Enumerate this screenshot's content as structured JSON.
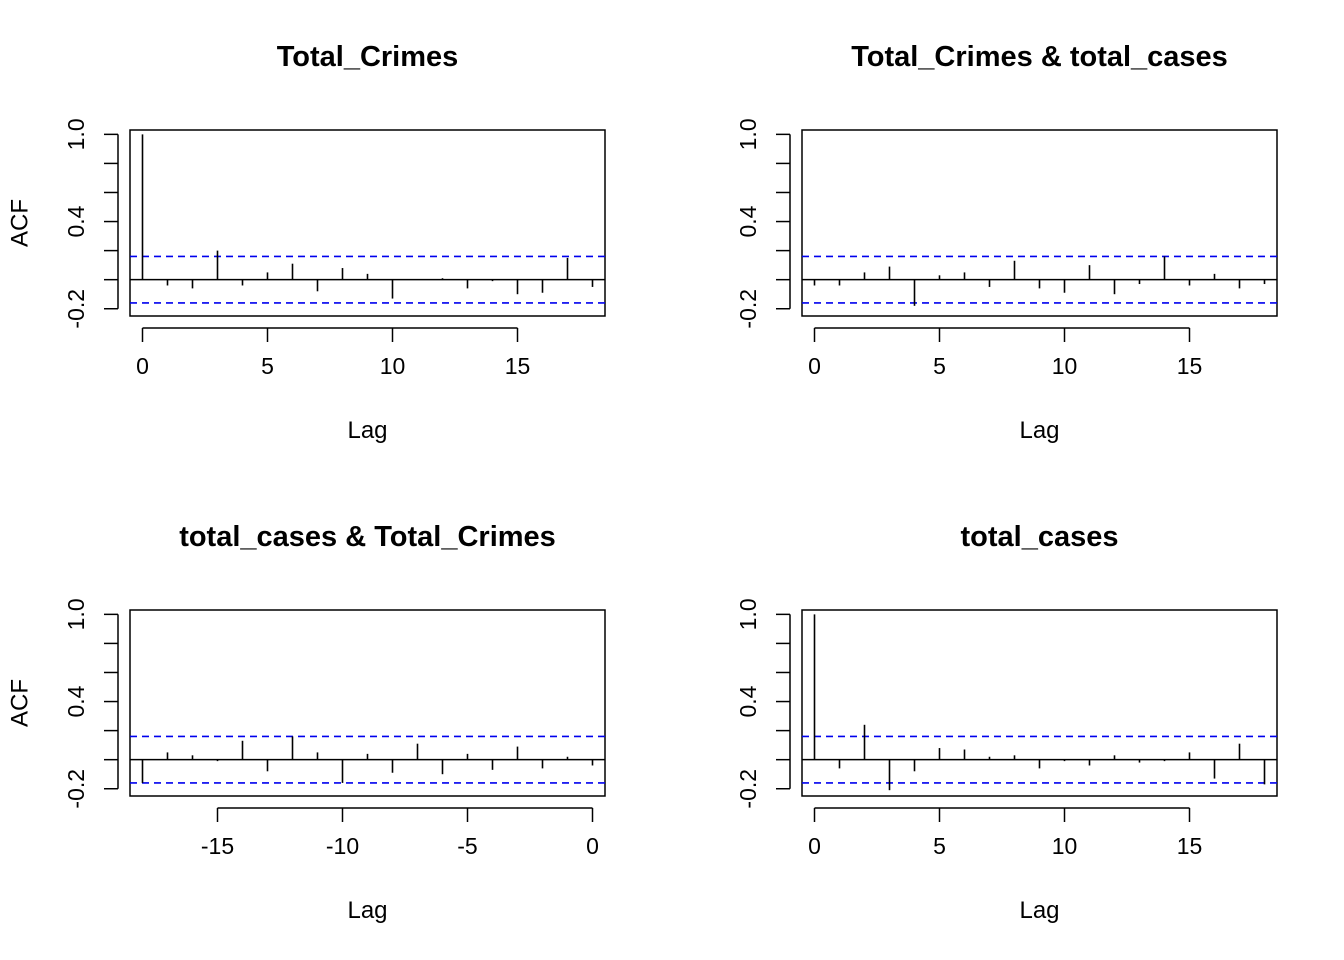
{
  "colors": {
    "ci_line": "#0000ee",
    "bar": "#000000",
    "frame": "#000000"
  },
  "chart_data": [
    {
      "type": "bar",
      "title": "Total_Crimes",
      "xlabel": "Lag",
      "ylabel": "ACF",
      "xlim": [
        -0.5,
        18.5
      ],
      "ylim": [
        -0.25,
        1.03
      ],
      "xticks": [
        0,
        5,
        10,
        15
      ],
      "xtick_labels": [
        "0",
        "5",
        "10",
        "15"
      ],
      "yticks": [
        -0.2,
        0.4,
        1.0
      ],
      "ytick_labels": [
        "-0.2",
        "0.4",
        "1.0"
      ],
      "yminor": [
        -0.2,
        0.0,
        0.2,
        0.4,
        0.6,
        0.8,
        1.0
      ],
      "ci": 0.16,
      "x": [
        0,
        1,
        2,
        3,
        4,
        5,
        6,
        7,
        8,
        9,
        10,
        11,
        12,
        13,
        14,
        15,
        16,
        17,
        18
      ],
      "values": [
        1.0,
        -0.04,
        -0.06,
        0.2,
        -0.04,
        0.05,
        0.11,
        -0.08,
        0.08,
        0.04,
        -0.13,
        0.0,
        0.01,
        -0.06,
        -0.01,
        -0.1,
        -0.09,
        0.15,
        -0.05
      ]
    },
    {
      "type": "bar",
      "title": "Total_Crimes & total_cases",
      "xlabel": "Lag",
      "ylabel": "",
      "xlim": [
        -0.5,
        18.5
      ],
      "ylim": [
        -0.25,
        1.03
      ],
      "xticks": [
        0,
        5,
        10,
        15
      ],
      "xtick_labels": [
        "0",
        "5",
        "10",
        "15"
      ],
      "yticks": [
        -0.2,
        0.4,
        1.0
      ],
      "ytick_labels": [
        "-0.2",
        "0.4",
        "1.0"
      ],
      "yminor": [
        -0.2,
        0.0,
        0.2,
        0.4,
        0.6,
        0.8,
        1.0
      ],
      "ci": 0.16,
      "x": [
        0,
        1,
        2,
        3,
        4,
        5,
        6,
        7,
        8,
        9,
        10,
        11,
        12,
        13,
        14,
        15,
        16,
        17,
        18
      ],
      "values": [
        -0.04,
        -0.04,
        0.05,
        0.09,
        -0.18,
        0.03,
        0.05,
        -0.05,
        0.13,
        -0.06,
        -0.09,
        0.1,
        -0.1,
        -0.03,
        0.16,
        -0.04,
        0.04,
        -0.06,
        -0.03
      ]
    },
    {
      "type": "bar",
      "title": "total_cases & Total_Crimes",
      "xlabel": "Lag",
      "ylabel": "ACF",
      "xlim": [
        -18.5,
        0.5
      ],
      "ylim": [
        -0.25,
        1.03
      ],
      "xticks": [
        -15,
        -10,
        -5,
        0
      ],
      "xtick_labels": [
        "-15",
        "-10",
        "-5",
        "0"
      ],
      "yticks": [
        -0.2,
        0.4,
        1.0
      ],
      "ytick_labels": [
        "-0.2",
        "0.4",
        "1.0"
      ],
      "yminor": [
        -0.2,
        0.0,
        0.2,
        0.4,
        0.6,
        0.8,
        1.0
      ],
      "ci": 0.16,
      "x": [
        -18,
        -17,
        -16,
        -15,
        -14,
        -13,
        -12,
        -11,
        -10,
        -9,
        -8,
        -7,
        -6,
        -5,
        -4,
        -3,
        -2,
        -1,
        0
      ],
      "values": [
        -0.16,
        0.05,
        0.03,
        -0.01,
        0.13,
        -0.08,
        0.16,
        0.05,
        -0.16,
        0.04,
        -0.09,
        0.11,
        -0.1,
        0.04,
        -0.07,
        0.09,
        -0.06,
        0.02,
        -0.04
      ]
    },
    {
      "type": "bar",
      "title": "total_cases",
      "xlabel": "Lag",
      "ylabel": "",
      "xlim": [
        -0.5,
        18.5
      ],
      "ylim": [
        -0.25,
        1.03
      ],
      "xticks": [
        0,
        5,
        10,
        15
      ],
      "xtick_labels": [
        "0",
        "5",
        "10",
        "15"
      ],
      "yticks": [
        -0.2,
        0.4,
        1.0
      ],
      "ytick_labels": [
        "-0.2",
        "0.4",
        "1.0"
      ],
      "yminor": [
        -0.2,
        0.0,
        0.2,
        0.4,
        0.6,
        0.8,
        1.0
      ],
      "ci": 0.16,
      "x": [
        0,
        1,
        2,
        3,
        4,
        5,
        6,
        7,
        8,
        9,
        10,
        11,
        12,
        13,
        14,
        15,
        16,
        17,
        18
      ],
      "values": [
        1.0,
        -0.06,
        0.24,
        -0.21,
        -0.08,
        0.08,
        0.07,
        0.02,
        0.03,
        -0.06,
        -0.01,
        -0.04,
        0.03,
        -0.02,
        -0.01,
        0.05,
        -0.13,
        0.11,
        -0.17
      ]
    }
  ]
}
